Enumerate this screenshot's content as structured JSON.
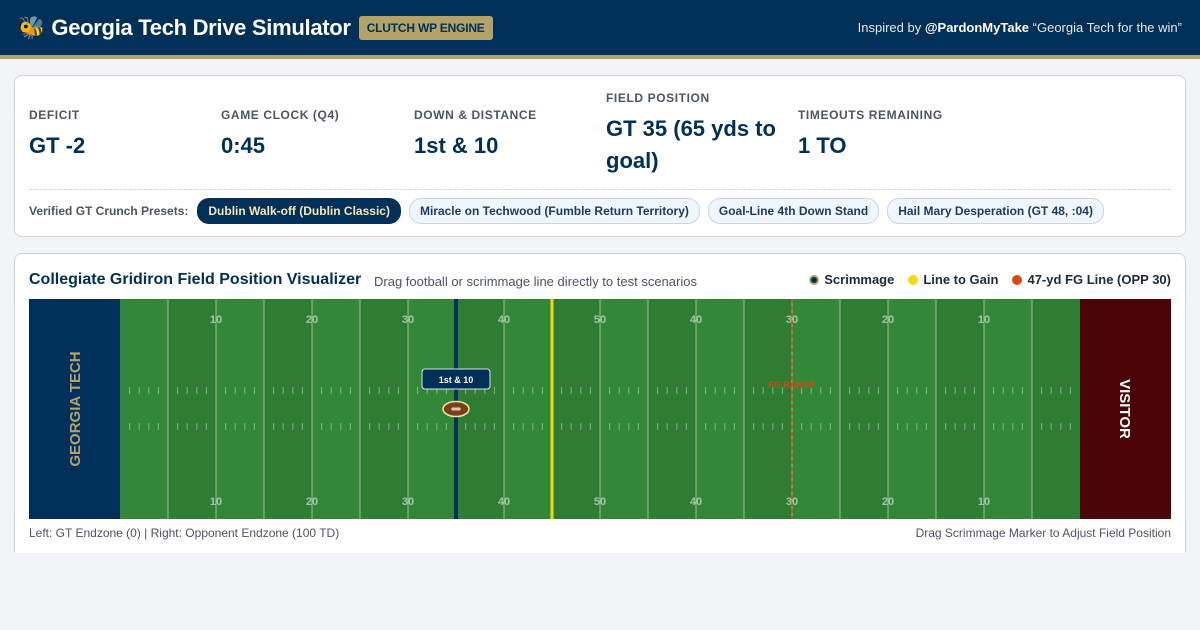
{
  "header": {
    "title": "Georgia Tech Drive Simulator",
    "badge": "CLUTCH WP ENGINE",
    "inspired_prefix": "Inspired by",
    "inspired_handle": "@PardonMyTake",
    "inspired_quote": "“Georgia Tech for the win”",
    "icon": "bee-icon",
    "colors": {
      "navy": "#003057",
      "gold": "#b3a369"
    }
  },
  "stats": [
    {
      "label": "DEFICIT",
      "value": "GT -2"
    },
    {
      "label": "GAME CLOCK (Q4)",
      "value": "0:45"
    },
    {
      "label": "DOWN & DISTANCE",
      "value": "1st & 10"
    },
    {
      "label": "FIELD POSITION",
      "value": "GT 35 (65 yds to goal)"
    },
    {
      "label": "TIMEOUTS REMAINING",
      "value": "1 TO"
    }
  ],
  "presets": {
    "label": "Verified GT Crunch Presets:",
    "items": [
      {
        "label": "Dublin Walk-off (Dublin Classic)",
        "active": true
      },
      {
        "label": "Miracle on Techwood (Fumble Return Territory)",
        "active": false
      },
      {
        "label": "Goal-Line 4th Down Stand",
        "active": false
      },
      {
        "label": "Hail Mary Desperation (GT 48, :04)",
        "active": false
      }
    ]
  },
  "field": {
    "title": "Collegiate Gridiron Field Position Visualizer",
    "subtitle": "Drag football or scrimmage line directly to test scenarios",
    "legend": [
      {
        "label": "Scrimmage",
        "color": "#003057"
      },
      {
        "label": "Line to Gain",
        "color": "#f5d90a"
      },
      {
        "label": "47-yd FG Line (OPP 30)",
        "color": "#d9480f"
      }
    ],
    "left_endzone": "GEORGIA TECH",
    "right_endzone": "VISITOR",
    "yard_numbers": [
      "10",
      "20",
      "30",
      "40",
      "50",
      "40",
      "30",
      "20",
      "10"
    ],
    "scrimmage_yard": 35,
    "line_to_gain_yard": 45,
    "fg_line_yard": 70,
    "fg_label": "FG RANGE",
    "marker_label": "1st & 10",
    "colors": {
      "endzone_left": "#003057",
      "endzone_right": "#4a0606",
      "turf": "#2e7d32",
      "turf_alt": "#37913b"
    },
    "footer_left": "Left: GT Endzone (0) | Right: Opponent Endzone (100 TD)",
    "footer_right": "Drag Scrimmage Marker to Adjust Field Position"
  }
}
